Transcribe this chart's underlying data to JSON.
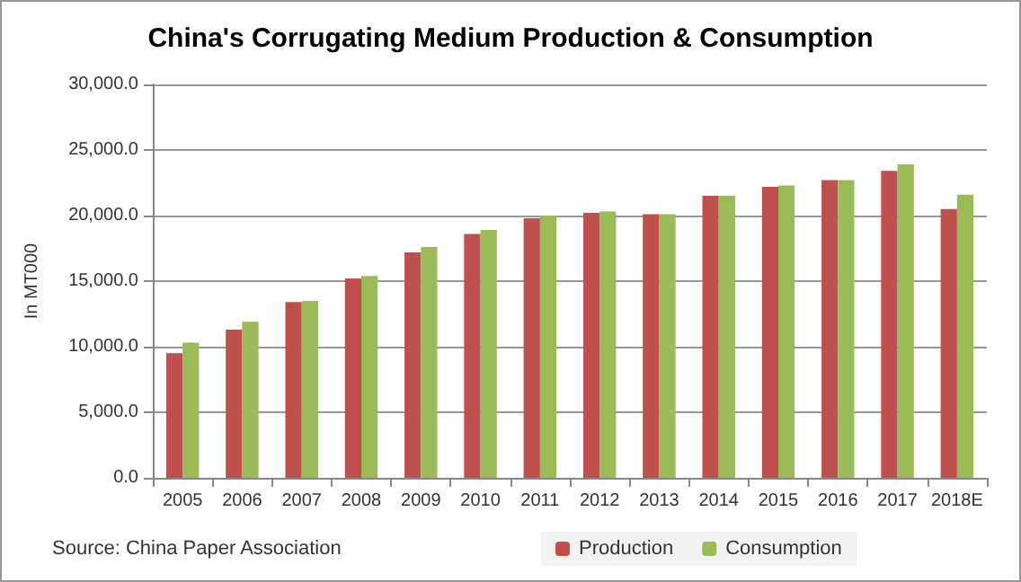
{
  "chart_data": {
    "type": "bar",
    "title": "China's Corrugating Medium Production & Consumption",
    "ylabel": "In MT000",
    "categories": [
      "2005",
      "2006",
      "2007",
      "2008",
      "2009",
      "2010",
      "2011",
      "2012",
      "2013",
      "2014",
      "2015",
      "2016",
      "2017",
      "2018E"
    ],
    "series": [
      {
        "name": "Production",
        "color": "#c0504d",
        "values": [
          9500,
          11300,
          13400,
          15200,
          17200,
          18600,
          19800,
          20200,
          20100,
          21500,
          22200,
          22700,
          23400,
          20500
        ]
      },
      {
        "name": "Consumption",
        "color": "#9bbb59",
        "values": [
          10300,
          11900,
          13500,
          15400,
          17600,
          18900,
          20000,
          20300,
          20100,
          21500,
          22300,
          22700,
          23900,
          21600
        ]
      }
    ],
    "ylim": [
      0,
      30000
    ],
    "yticks": [
      {
        "value": 0,
        "label": "0.0"
      },
      {
        "value": 5000,
        "label": "5,000.0"
      },
      {
        "value": 10000,
        "label": "10,000.0"
      },
      {
        "value": 15000,
        "label": "15,000.0"
      },
      {
        "value": 20000,
        "label": "20,000.0"
      },
      {
        "value": 25000,
        "label": "25,000.0"
      },
      {
        "value": 30000,
        "label": "30,000.0"
      }
    ],
    "grid": "y",
    "legend": "bottom",
    "annotations": [
      "Source: China Paper Association"
    ]
  }
}
